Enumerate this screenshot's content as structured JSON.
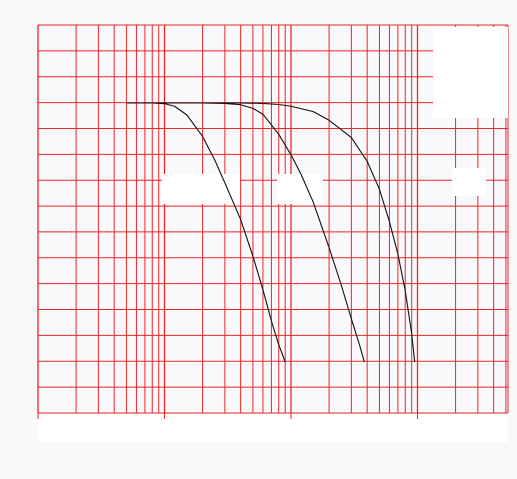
{
  "chart_data": {
    "type": "line",
    "title": "",
    "xlabel": "",
    "ylabel": "",
    "x_scale": "log",
    "xlim": [
      0.1,
      100
    ],
    "ylim": [
      0,
      12
    ],
    "grid": true,
    "legend": "none",
    "colors": {
      "background": "#f9f9fb",
      "grid": "#e8262a",
      "line": "#111111",
      "patch": "#ffffff"
    },
    "series": [
      {
        "x": [
          0.5,
          0.8,
          1.0,
          1.2,
          1.5,
          2.0,
          2.5,
          3.0,
          4.0,
          5.0,
          6.0,
          7.0,
          8.0,
          9.0
        ],
        "values": [
          12.0,
          12.0,
          11.97,
          11.85,
          11.45,
          10.45,
          9.35,
          8.3,
          6.6,
          4.9,
          3.35,
          1.9,
          0.8,
          0.0
        ]
      },
      {
        "x": [
          0.5,
          1.0,
          2.0,
          3.0,
          4.0,
          5.0,
          6.0,
          8.0,
          10.0,
          12.0,
          15.0,
          20.0,
          25.0,
          30.0,
          35.0,
          38.0
        ],
        "values": [
          12.0,
          12.0,
          12.0,
          11.98,
          11.92,
          11.75,
          11.48,
          10.55,
          9.6,
          8.7,
          7.4,
          5.3,
          3.55,
          2.0,
          0.75,
          0.0
        ]
      },
      {
        "x": [
          0.5,
          1.0,
          2.0,
          4.0,
          6.0,
          8.0,
          10.0,
          15.0,
          20.0,
          30.0,
          40.0,
          50.0,
          60.0,
          70.0,
          80.0,
          90.0,
          95.0
        ],
        "values": [
          12.0,
          12.0,
          12.0,
          12.0,
          11.98,
          11.93,
          11.85,
          11.6,
          11.2,
          10.4,
          9.3,
          8.0,
          6.5,
          5.0,
          3.3,
          1.3,
          0.0
        ]
      }
    ]
  }
}
